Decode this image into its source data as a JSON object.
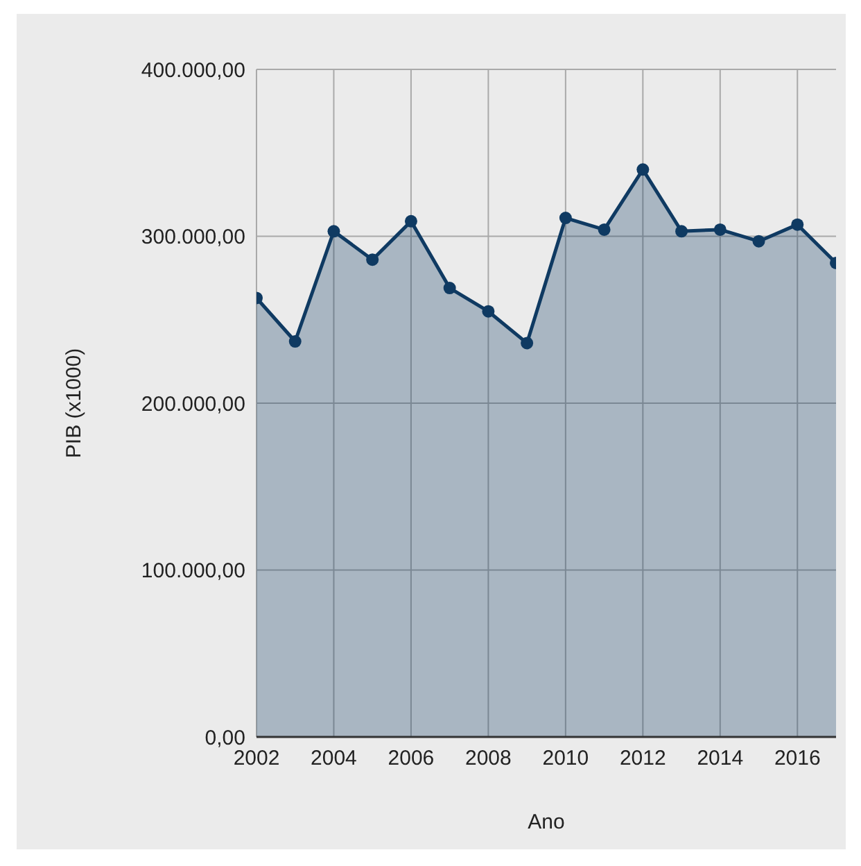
{
  "chart_data": {
    "type": "area",
    "xlabel": "Ano",
    "ylabel": "PIB (x1000)",
    "x": [
      2002,
      2003,
      2004,
      2005,
      2006,
      2007,
      2008,
      2009,
      2010,
      2011,
      2012,
      2013,
      2014,
      2015,
      2016,
      2017
    ],
    "series": [
      {
        "color": "#0f3a62",
        "values": [
          263000,
          237000,
          303000,
          286000,
          309000,
          269000,
          255000,
          236000,
          311000,
          304000,
          340000,
          303000,
          304000,
          297000,
          307000,
          284000
        ]
      }
    ],
    "xlim": [
      2002,
      2017
    ],
    "xticks": [
      2002,
      2004,
      2006,
      2008,
      2010,
      2012,
      2014,
      2016
    ],
    "ylim": [
      0,
      400000
    ],
    "yticks": [
      {
        "value": 0,
        "label": "0,00"
      },
      {
        "value": 100000,
        "label": "100.000,00"
      },
      {
        "value": 200000,
        "label": "200.000,00"
      },
      {
        "value": 300000,
        "label": "300.000,00"
      },
      {
        "value": 400000,
        "label": "400.000,00"
      }
    ],
    "grid": true,
    "marker": "circle",
    "line_style": "solid"
  }
}
